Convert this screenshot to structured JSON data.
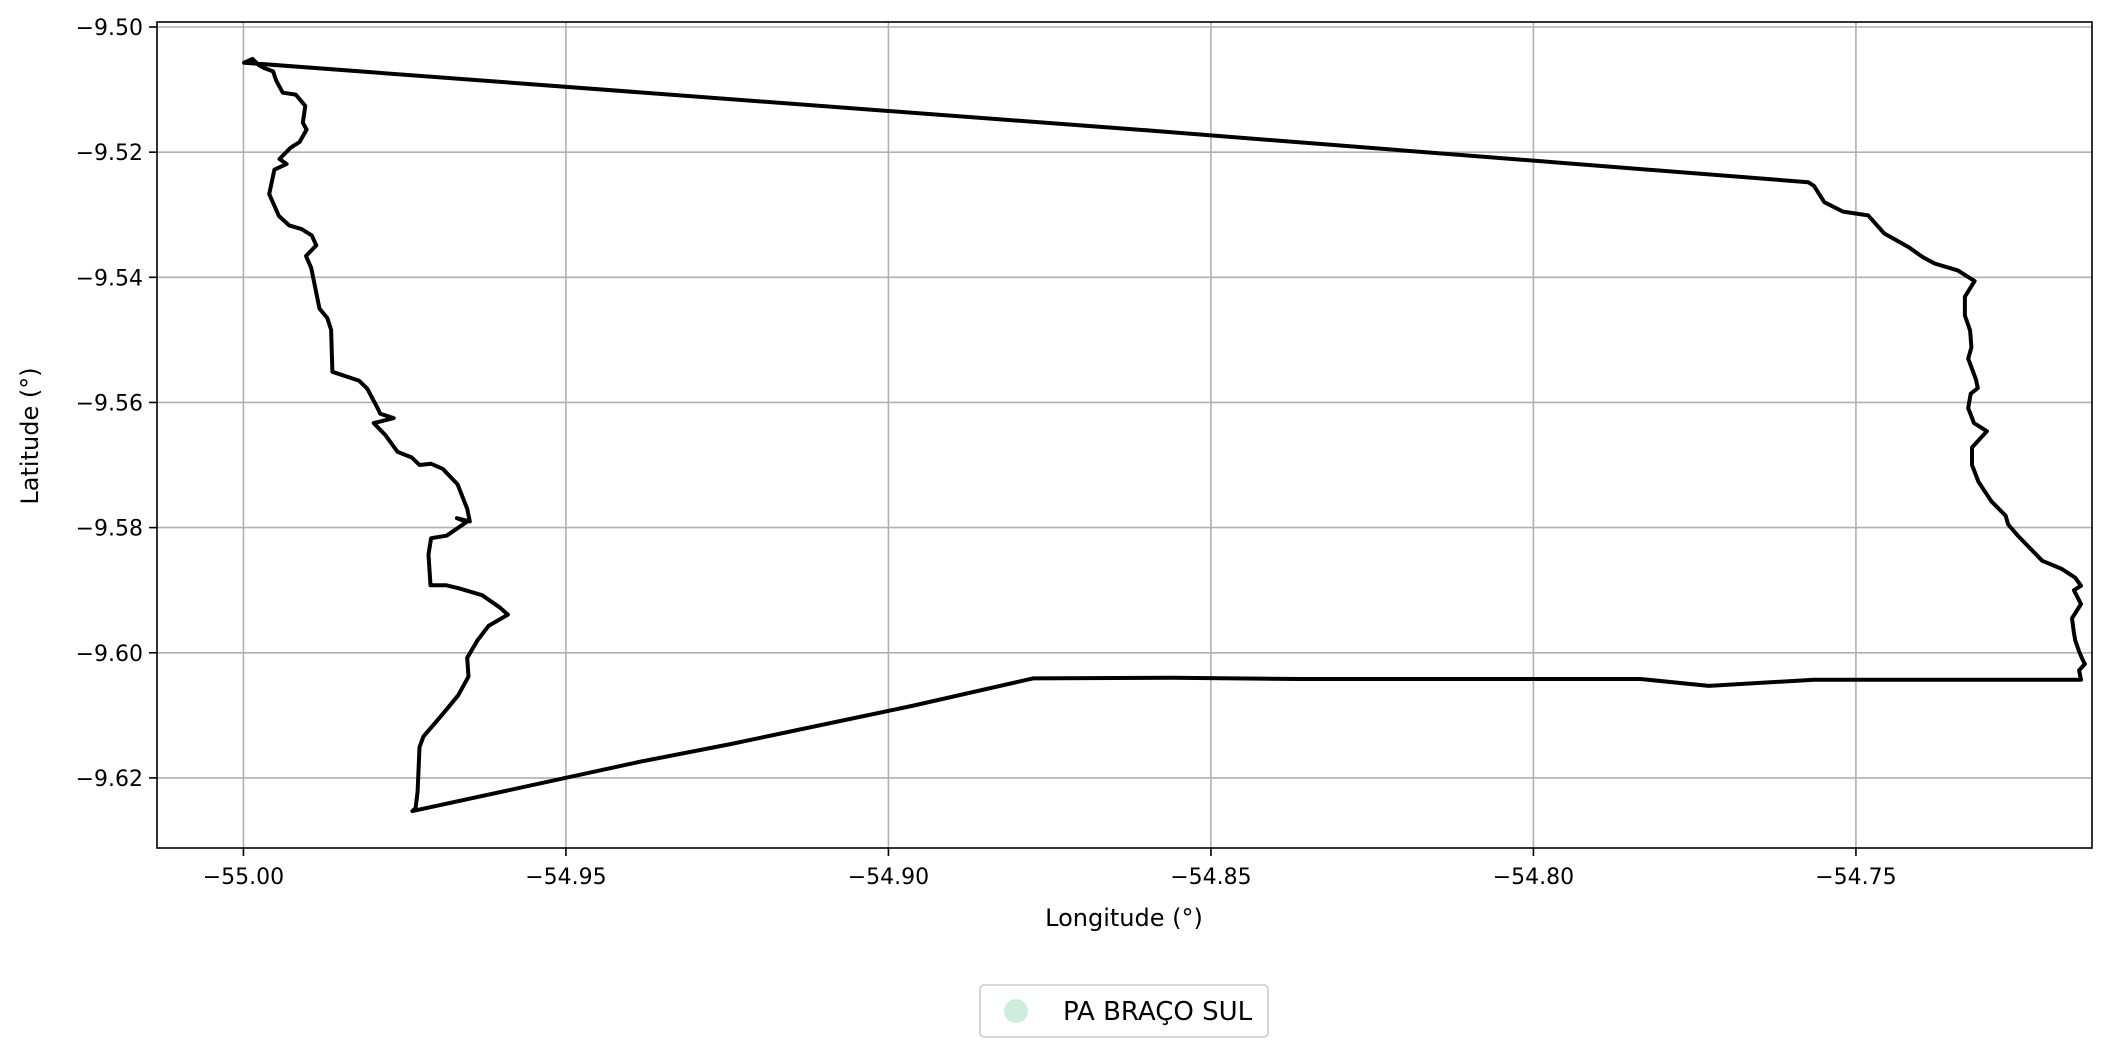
{
  "chart_data": {
    "type": "line",
    "title": "",
    "xlabel": "Longitude (°)",
    "ylabel": "Latitude (°)",
    "xlim": [
      -55.0134,
      -54.7134
    ],
    "ylim": [
      -9.6312,
      -9.4992
    ],
    "xticks": [
      -55.0,
      -54.95,
      -54.9,
      -54.85,
      -54.8,
      -54.75
    ],
    "xtick_labels": [
      "−55.00",
      "−54.95",
      "−54.90",
      "−54.85",
      "−54.80",
      "−54.75"
    ],
    "yticks": [
      -9.5,
      -9.52,
      -9.54,
      -9.56,
      -9.58,
      -9.6,
      -9.62
    ],
    "ytick_labels": [
      "−9.50",
      "−9.52",
      "−9.54",
      "−9.56",
      "−9.58",
      "−9.60",
      "−9.62"
    ],
    "grid": true,
    "legend": {
      "placement": "bottom-center, below plot",
      "entries": [
        {
          "label": "PA BRAÇO SUL",
          "color": "#cdeddd",
          "marker": "circle"
        }
      ]
    },
    "series": [
      {
        "boundary_color": "#000000",
        "fill": "none",
        "points": [
          [
            -54.9999,
            -9.5057
          ],
          [
            -54.9986,
            -9.5051
          ],
          [
            -54.9976,
            -9.5061
          ],
          [
            -54.9967,
            -9.5066
          ],
          [
            -54.9954,
            -9.5071
          ],
          [
            -54.9949,
            -9.5086
          ],
          [
            -54.9939,
            -9.5105
          ],
          [
            -54.9919,
            -9.5108
          ],
          [
            -54.9904,
            -9.5126
          ],
          [
            -54.9908,
            -9.5153
          ],
          [
            -54.9902,
            -9.5164
          ],
          [
            -54.9913,
            -9.5184
          ],
          [
            -54.9927,
            -9.5193
          ],
          [
            -54.9944,
            -9.5211
          ],
          [
            -54.9933,
            -9.5219
          ],
          [
            -54.9952,
            -9.5228
          ],
          [
            -54.996,
            -9.5267
          ],
          [
            -54.9945,
            -9.5302
          ],
          [
            -54.9929,
            -9.5317
          ],
          [
            -54.991,
            -9.5323
          ],
          [
            -54.9894,
            -9.5333
          ],
          [
            -54.9887,
            -9.5349
          ],
          [
            -54.9903,
            -9.5366
          ],
          [
            -54.9895,
            -9.5385
          ],
          [
            -54.9882,
            -9.545
          ],
          [
            -54.987,
            -9.5465
          ],
          [
            -54.9864,
            -9.5484
          ],
          [
            -54.9862,
            -9.5551
          ],
          [
            -54.9821,
            -9.5565
          ],
          [
            -54.9808,
            -9.5578
          ],
          [
            -54.9791,
            -9.5611
          ],
          [
            -54.9788,
            -9.5618
          ],
          [
            -54.9767,
            -9.5625
          ],
          [
            -54.9798,
            -9.5633
          ],
          [
            -54.978,
            -9.5652
          ],
          [
            -54.9761,
            -9.5679
          ],
          [
            -54.9739,
            -9.5688
          ],
          [
            -54.9727,
            -9.57
          ],
          [
            -54.9709,
            -9.5698
          ],
          [
            -54.9691,
            -9.5706
          ],
          [
            -54.9668,
            -9.5731
          ],
          [
            -54.9653,
            -9.577
          ],
          [
            -54.9649,
            -9.579
          ],
          [
            -54.9669,
            -9.5785
          ],
          [
            -54.9654,
            -9.5791
          ],
          [
            -54.9685,
            -9.5813
          ],
          [
            -54.9709,
            -9.5817
          ],
          [
            -54.9713,
            -9.5843
          ],
          [
            -54.971,
            -9.5892
          ],
          [
            -54.9686,
            -9.5892
          ],
          [
            -54.9666,
            -9.5897
          ],
          [
            -54.963,
            -9.5908
          ],
          [
            -54.9602,
            -9.5928
          ],
          [
            -54.959,
            -9.5939
          ],
          [
            -54.9598,
            -9.5944
          ],
          [
            -54.962,
            -9.5957
          ],
          [
            -54.9637,
            -9.598
          ],
          [
            -54.9653,
            -9.6008
          ],
          [
            -54.9651,
            -9.6038
          ],
          [
            -54.9667,
            -9.6068
          ],
          [
            -54.9683,
            -9.6088
          ],
          [
            -54.9696,
            -9.6104
          ],
          [
            -54.9721,
            -9.6134
          ],
          [
            -54.9727,
            -9.6151
          ],
          [
            -54.973,
            -9.6222
          ],
          [
            -54.9733,
            -9.6248
          ],
          [
            -54.9738,
            -9.6253
          ],
          [
            -54.9384,
            -9.6174
          ],
          [
            -54.9245,
            -9.6146
          ],
          [
            -54.8964,
            -9.6085
          ],
          [
            -54.8776,
            -9.6041
          ],
          [
            -54.8561,
            -9.604
          ],
          [
            -54.8364,
            -9.6042
          ],
          [
            -54.8108,
            -9.6042
          ],
          [
            -54.7834,
            -9.6042
          ],
          [
            -54.7728,
            -9.6053
          ],
          [
            -54.7565,
            -9.6043
          ],
          [
            -54.7311,
            -9.6043
          ],
          [
            -54.7188,
            -9.6043
          ],
          [
            -54.7151,
            -9.6043
          ],
          [
            -54.7154,
            -9.6028
          ],
          [
            -54.7145,
            -9.6018
          ],
          [
            -54.7149,
            -9.601
          ],
          [
            -54.7154,
            -9.5998
          ],
          [
            -54.716,
            -9.598
          ],
          [
            -54.7162,
            -9.5968
          ],
          [
            -54.7165,
            -9.5945
          ],
          [
            -54.7151,
            -9.5922
          ],
          [
            -54.7162,
            -9.59
          ],
          [
            -54.7151,
            -9.5893
          ],
          [
            -54.716,
            -9.588
          ],
          [
            -54.7181,
            -9.5866
          ],
          [
            -54.7211,
            -9.5853
          ],
          [
            -54.7248,
            -9.5814
          ],
          [
            -54.7264,
            -9.5795
          ],
          [
            -54.7268,
            -9.5781
          ],
          [
            -54.729,
            -9.5758
          ],
          [
            -54.731,
            -9.5727
          ],
          [
            -54.732,
            -9.57
          ],
          [
            -54.732,
            -9.5672
          ],
          [
            -54.7297,
            -9.5646
          ],
          [
            -54.7317,
            -9.5633
          ],
          [
            -54.7326,
            -9.5609
          ],
          [
            -54.7322,
            -9.5586
          ],
          [
            -54.7311,
            -9.5577
          ],
          [
            -54.7314,
            -9.5563
          ],
          [
            -54.7326,
            -9.553
          ],
          [
            -54.7321,
            -9.5512
          ],
          [
            -54.7323,
            -9.5485
          ],
          [
            -54.7331,
            -9.5461
          ],
          [
            -54.7331,
            -9.5431
          ],
          [
            -54.7316,
            -9.5406
          ],
          [
            -54.7342,
            -9.5389
          ],
          [
            -54.7378,
            -9.5378
          ],
          [
            -54.7396,
            -9.5368
          ],
          [
            -54.7418,
            -9.5352
          ],
          [
            -54.7456,
            -9.533
          ],
          [
            -54.7481,
            -9.5301
          ],
          [
            -54.752,
            -9.5295
          ],
          [
            -54.7549,
            -9.528
          ],
          [
            -54.7565,
            -9.5254
          ],
          [
            -54.7574,
            -9.5248
          ],
          [
            -54.86,
            -9.5165
          ],
          [
            -54.9999,
            -9.5057
          ]
        ]
      }
    ]
  }
}
